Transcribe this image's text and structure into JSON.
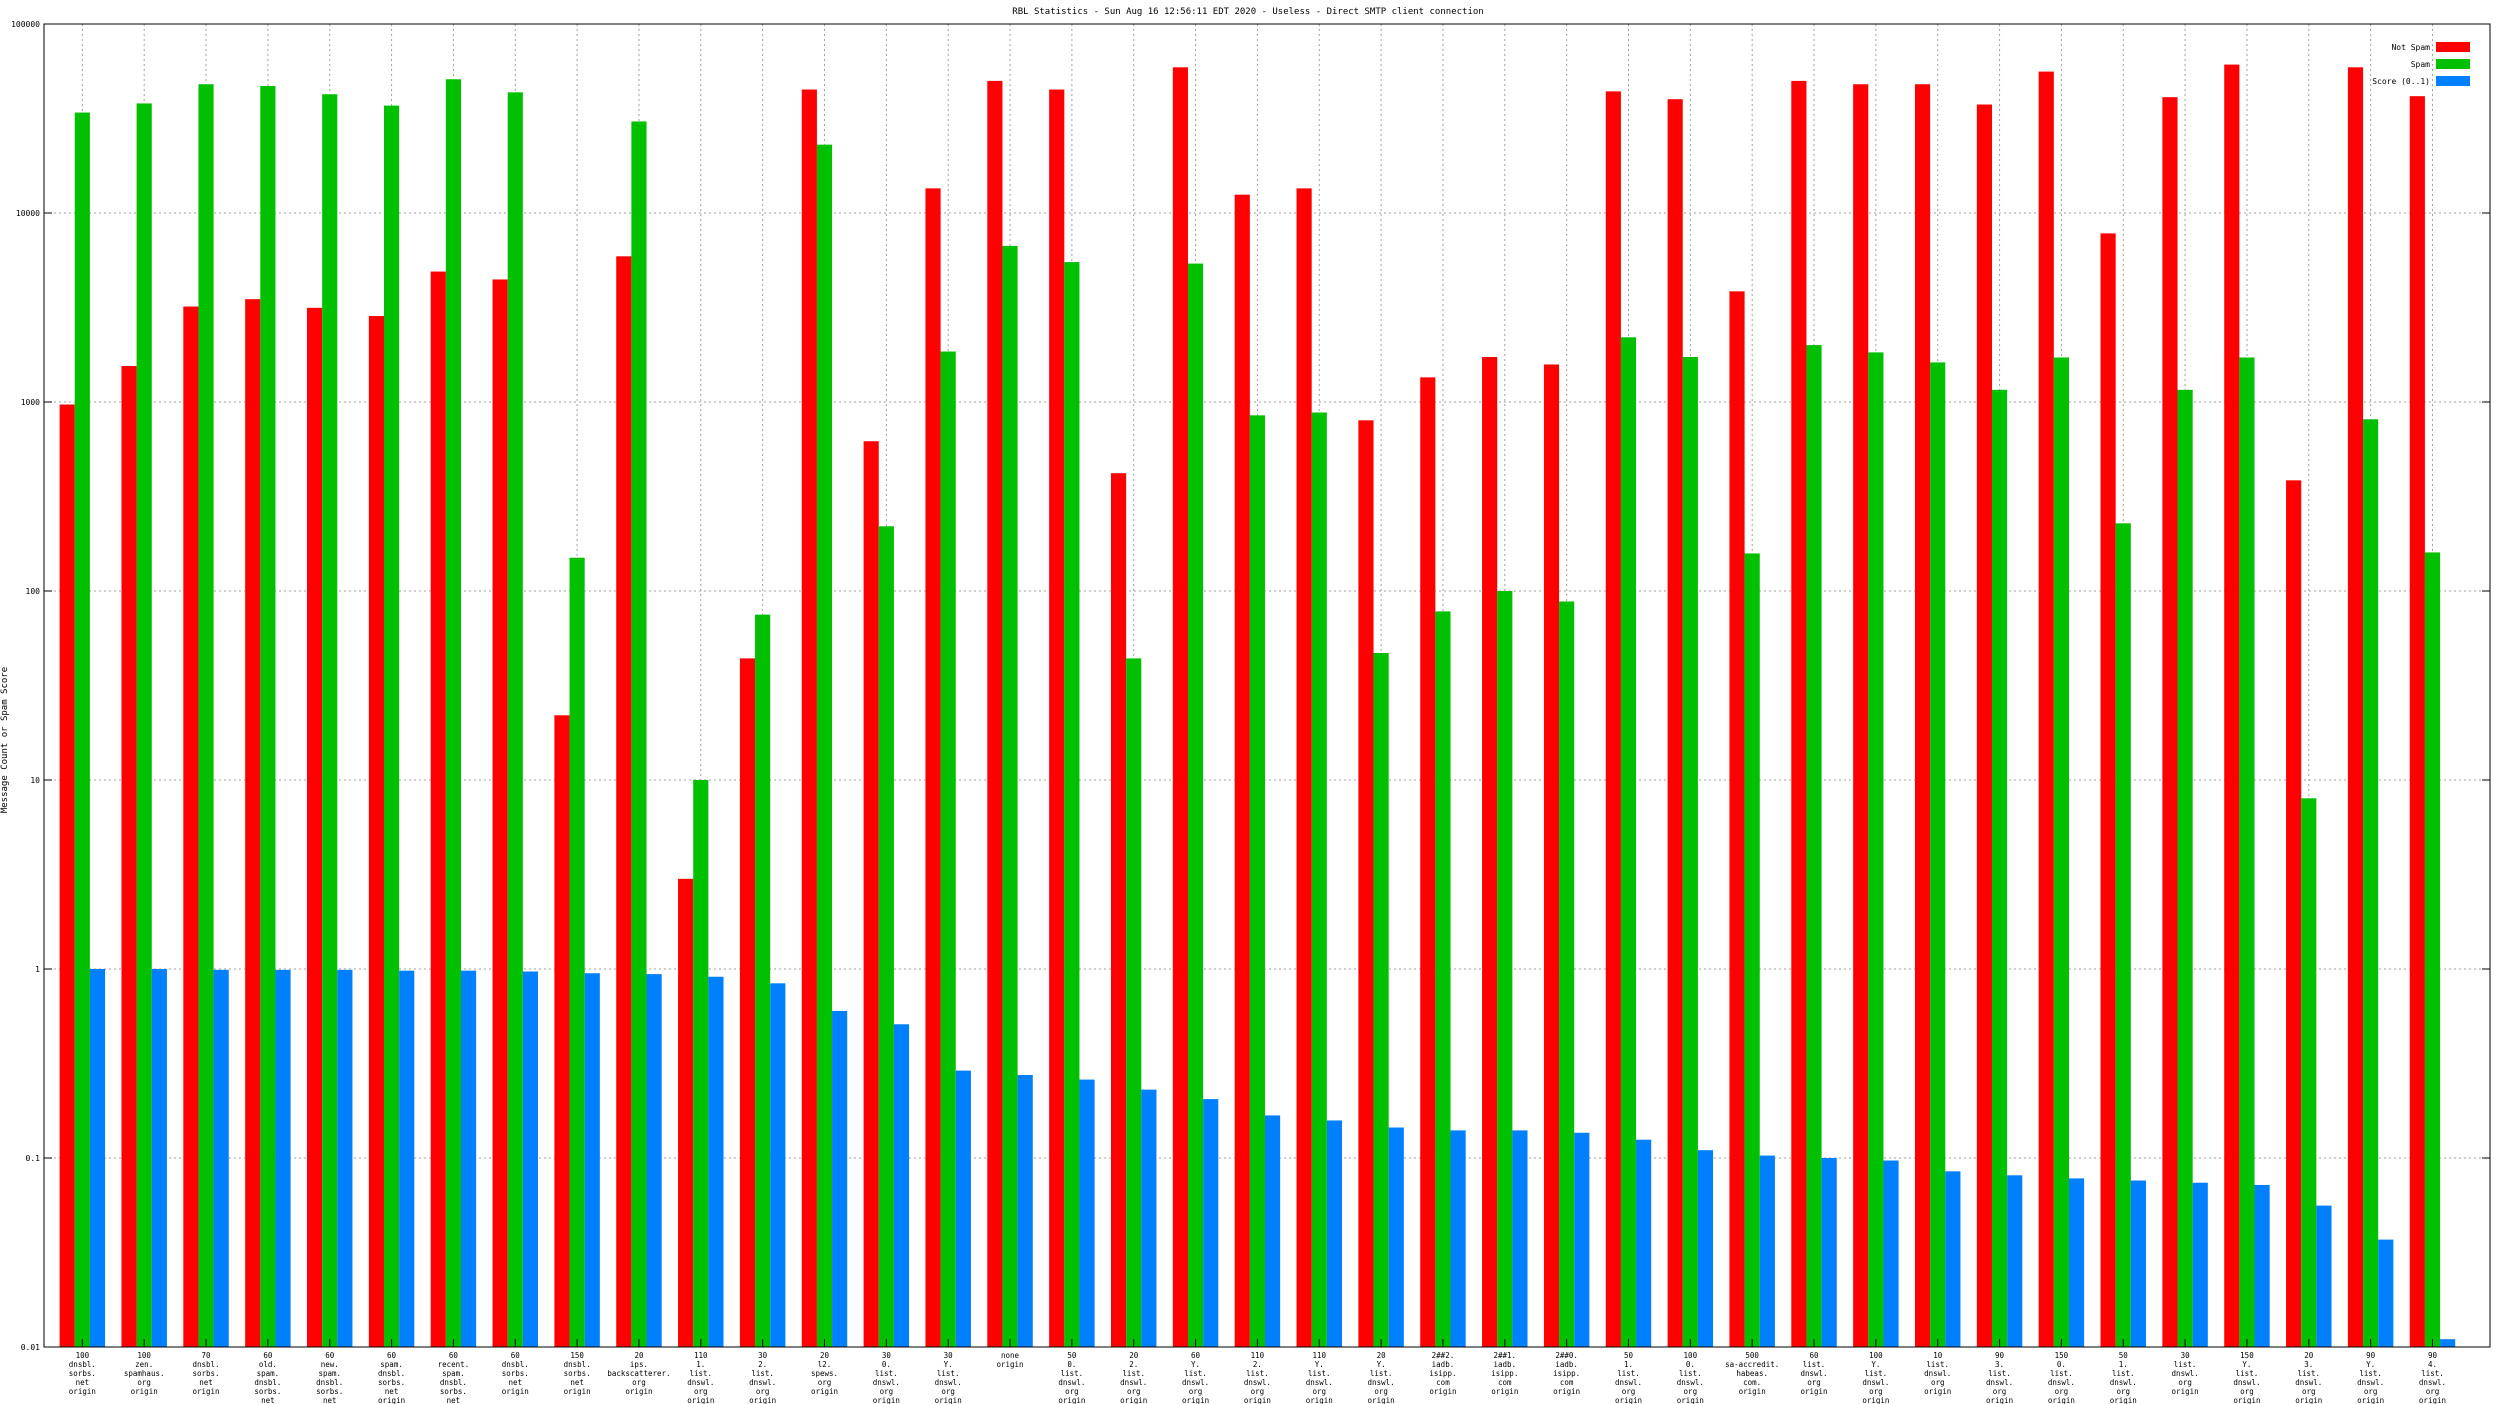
{
  "chart_data": {
    "type": "bar",
    "title": "RBL Statistics - Sun Aug 16 12:56:11 EDT 2020 - Useless - Direct SMTP client connection",
    "xlabel": "",
    "ylabel": "Message Count or Spam Score",
    "yscale": "log",
    "ylim": [
      0.01,
      100000
    ],
    "yticks": [
      "0.01",
      "0.1",
      "1",
      "10",
      "100",
      "1000",
      "10000",
      "100000"
    ],
    "grid": true,
    "legend_position": "top-right",
    "categories": [
      "100 dnsbl. sorbs. net origin",
      "100 zen. spamhaus. org origin",
      "70 dnsbl. sorbs. net origin",
      "60 old. spam. dnsbl. sorbs. net origin",
      "60 new. spam. dnsbl. sorbs. net origin",
      "60 spam. dnsbl. sorbs. net origin",
      "60 recent. spam. dnsbl. sorbs. net origin",
      "60 dnsbl. sorbs. net origin",
      "150 dnsbl. sorbs. net origin",
      "20 ips. backscatterer. org origin",
      "110 1. list. dnswl. org origin",
      "30 2. list. dnswl. org origin",
      "20 l2. spews. org origin",
      "30 0. list. dnswl. org origin",
      "30 Y. list. dnswl. org origin",
      "none origin",
      "50 0. list. dnswl. org origin",
      "20 2. list. dnswl. org origin",
      "60 Y. list. dnswl. org origin",
      "110 2. list. dnswl. org origin",
      "110 Y. list. dnswl. org origin",
      "20 Y. list. dnswl. org origin",
      "2##2. iadb. isipp. com origin",
      "2##1. iadb. isipp. com origin",
      "2##0. iadb. isipp. com origin",
      "50 1. list. dnswl. org origin",
      "100 0. list. dnswl. org origin",
      "500 sa-accredit. habeas. com. origin",
      "60 list. dnswl. org origin",
      "100 Y. list. dnswl. org origin",
      "10 list. dnswl. org origin",
      "90 3. list. dnswl. org origin",
      "150 0. list. dnswl. org origin",
      "50 1. list. dnswl. org origin",
      "30 list. dnswl. org origin",
      "150 Y. list. dnswl. org origin",
      "20 3. list. dnswl. org origin",
      "90 Y. list. dnswl. org origin",
      "90 4. list. dnswl. org origin"
    ],
    "series": [
      {
        "name": "Not Spam",
        "color": "#ff0000",
        "values": [
          970,
          1550,
          3200,
          3500,
          3150,
          2850,
          4900,
          4450,
          22,
          5900,
          3,
          44,
          45000,
          620,
          13500,
          50000,
          45000,
          420,
          59000,
          12500,
          13500,
          800,
          1350,
          1730,
          1580,
          44000,
          40000,
          3850,
          50000,
          48000,
          48000,
          37500,
          56000,
          7800,
          41000,
          61000,
          385,
          59000,
          41500
        ]
      },
      {
        "name": "Spam",
        "color": "#00c000",
        "values": [
          34000,
          38000,
          48000,
          47000,
          42500,
          37000,
          51000,
          43500,
          150,
          30500,
          10,
          75,
          23000,
          220,
          1850,
          6700,
          5500,
          44,
          5400,
          850,
          880,
          47,
          78,
          100,
          88,
          2200,
          1730,
          158,
          2000,
          1830,
          1620,
          1160,
          1720,
          228,
          1160,
          1720,
          8,
          810,
          160
        ]
      },
      {
        "name": "Score (0..1)",
        "color": "#0080ff",
        "values": [
          1.0,
          1.0,
          0.99,
          0.99,
          0.99,
          0.98,
          0.98,
          0.97,
          0.95,
          0.94,
          0.91,
          0.84,
          0.6,
          0.51,
          0.29,
          0.275,
          0.26,
          0.23,
          0.205,
          0.168,
          0.158,
          0.145,
          0.14,
          0.14,
          0.136,
          0.125,
          0.11,
          0.103,
          0.1,
          0.097,
          0.085,
          0.081,
          0.078,
          0.076,
          0.074,
          0.072,
          0.056,
          0.037,
          0.011
        ]
      }
    ]
  }
}
